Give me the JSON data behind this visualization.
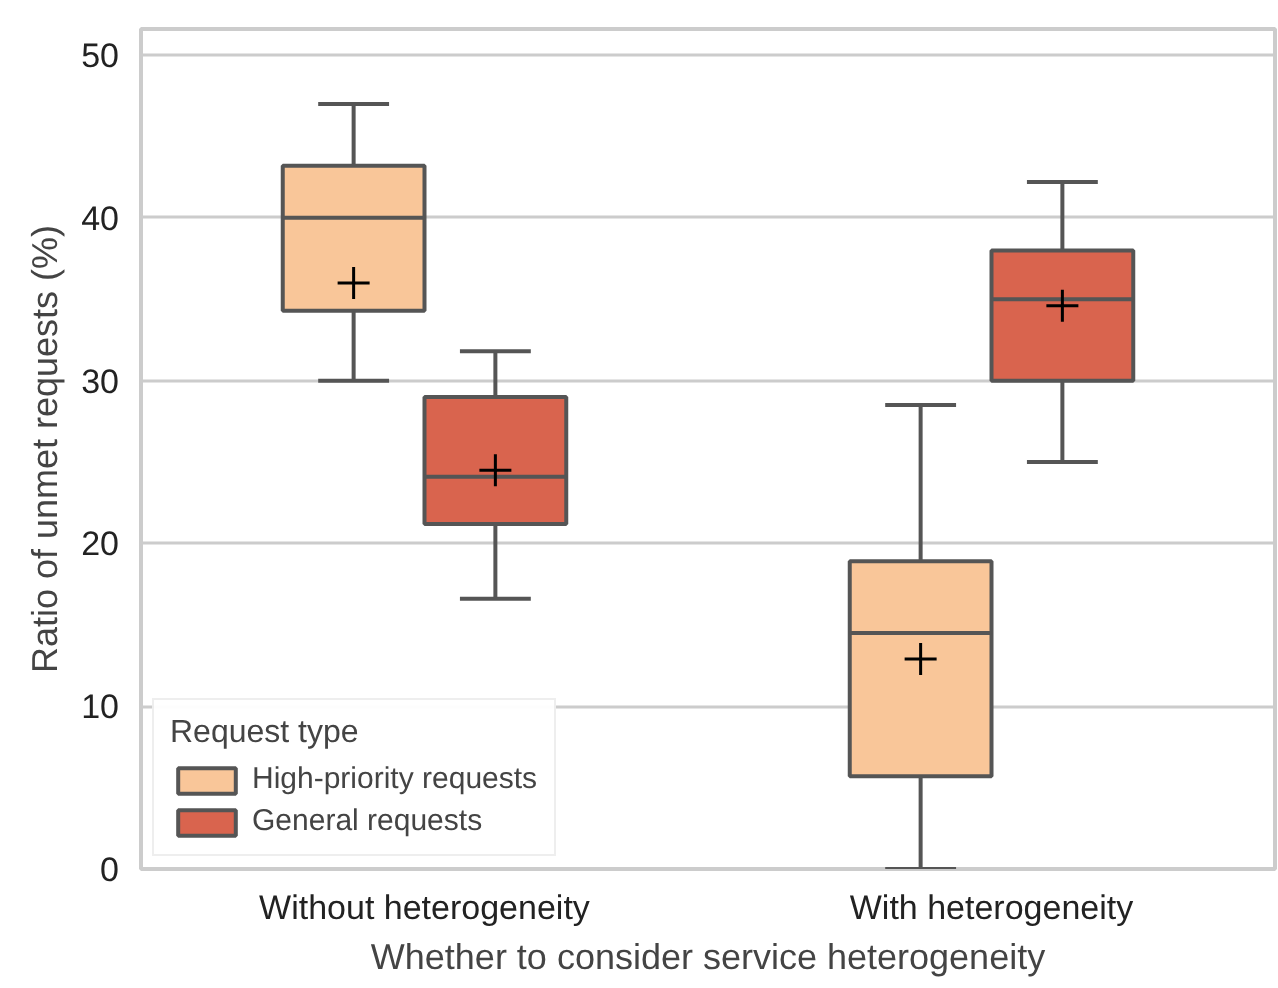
{
  "chart_data": {
    "type": "box",
    "xlabel": "Whether to consider service heterogeneity",
    "ylabel": "Ratio of unmet requests (%)",
    "legend_title": "Request type",
    "categories": [
      "Without heterogeneity",
      "With heterogeneity"
    ],
    "ylim": [
      0,
      51.6
    ],
    "yticks": [
      0,
      10,
      20,
      30,
      40,
      50
    ],
    "grid": "y",
    "legend": "bottom left",
    "marker": "cross",
    "series": [
      {
        "name": "High-priority requests",
        "color": "#f9c699",
        "boxes": [
          {
            "low": 30.0,
            "q1": 34.3,
            "median": 40.0,
            "q3": 43.2,
            "high": 47.0,
            "mean": 36.0
          },
          {
            "low": 0,
            "q1": 5.7,
            "median": 14.5,
            "q3": 18.9,
            "high": 28.5,
            "mean": 12.9
          }
        ]
      },
      {
        "name": "General requests",
        "color": "#d9644e",
        "boxes": [
          {
            "low": 16.6,
            "q1": 21.2,
            "median": 24.1,
            "q3": 29.0,
            "high": 31.8,
            "mean": 24.5
          },
          {
            "low": 25.0,
            "q1": 30.0,
            "median": 35.0,
            "q3": 38.0,
            "high": 42.2,
            "mean": 34.6
          }
        ]
      }
    ]
  }
}
